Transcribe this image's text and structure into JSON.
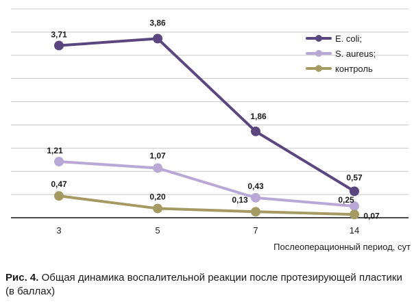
{
  "chart_data": {
    "type": "line",
    "categories": [
      "3",
      "5",
      "7",
      "14"
    ],
    "series": [
      {
        "name": "E. coli;",
        "color": "#5b4680",
        "values": [
          3.71,
          3.86,
          1.86,
          0.57
        ],
        "labels": [
          "3,71",
          "3,86",
          "1,86",
          "0,57"
        ]
      },
      {
        "name": "S. aureus;",
        "color": "#b9a8d6",
        "values": [
          1.21,
          1.07,
          0.43,
          0.25
        ],
        "labels": [
          "1,21",
          "1,07",
          "0,43",
          "0,25"
        ]
      },
      {
        "name": "контроль",
        "color": "#a59a61",
        "values": [
          0.47,
          0.2,
          0.13,
          0.07
        ],
        "labels": [
          "0,47",
          "0,20",
          "0,13",
          "0,07"
        ]
      }
    ],
    "xlabel": "Послеоперационный период, сут",
    "ylabel": "",
    "ylim": [
      0,
      4.5
    ],
    "grid": true,
    "legend": "top-right"
  },
  "caption": {
    "label": "Рис. 4.",
    "text": "Общая динамика воспалительной реакции после протезирующей пластики (в баллах)"
  }
}
